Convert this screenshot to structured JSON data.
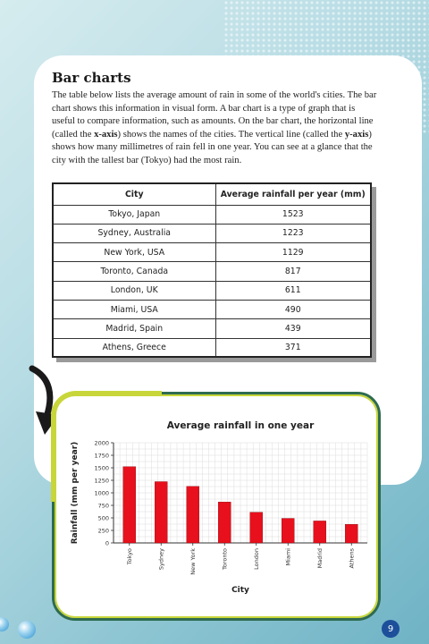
{
  "section": {
    "title": "Bar charts",
    "intro_lines": [
      "The table below lists the average amount of rain in some of the world's cities.",
      "The bar chart shows this information in visual form. A bar chart is a type of graph",
      "that is useful to compare information, such as amounts. On the bar chart, the",
      "horizontal line (called the ",
      "x-axis",
      ") shows the names of the cities. The vertical line",
      "(called the ",
      "y-axis",
      ") shows how many millimetres of rain fell in one year. You can",
      "see at a glance that the city with the tallest bar (Tokyo) had the most rain."
    ]
  },
  "table": {
    "headers": [
      "City",
      "Average rainfall per year (mm)"
    ],
    "rows": [
      [
        "Tokyo, Japan",
        "1523"
      ],
      [
        "Sydney, Australia",
        "1223"
      ],
      [
        "New York, USA",
        "1129"
      ],
      [
        "Toronto, Canada",
        "817"
      ],
      [
        "London, UK",
        "611"
      ],
      [
        "Miami, USA",
        "490"
      ],
      [
        "Madrid, Spain",
        "439"
      ],
      [
        "Athens, Greece",
        "371"
      ]
    ]
  },
  "chart_data": {
    "type": "bar",
    "title": "Average rainfall in one year",
    "xlabel": "City",
    "ylabel": "Rainfall (mm per year)",
    "categories": [
      "Tokyo",
      "Sydney",
      "New York",
      "Toronto",
      "London",
      "Miami",
      "Madrid",
      "Athens"
    ],
    "values": [
      1523,
      1223,
      1129,
      817,
      611,
      490,
      439,
      371
    ],
    "ylim": [
      0,
      2000
    ],
    "yticks": [
      0,
      250,
      500,
      750,
      1000,
      1250,
      1500,
      1750,
      2000
    ],
    "grid": true,
    "bar_color": "#e8101c"
  },
  "page": {
    "number": "9"
  },
  "colors": {
    "frame_dark": "#2e6b50",
    "frame_light": "#c8d63a",
    "page_badge": "#1d4f9a"
  }
}
